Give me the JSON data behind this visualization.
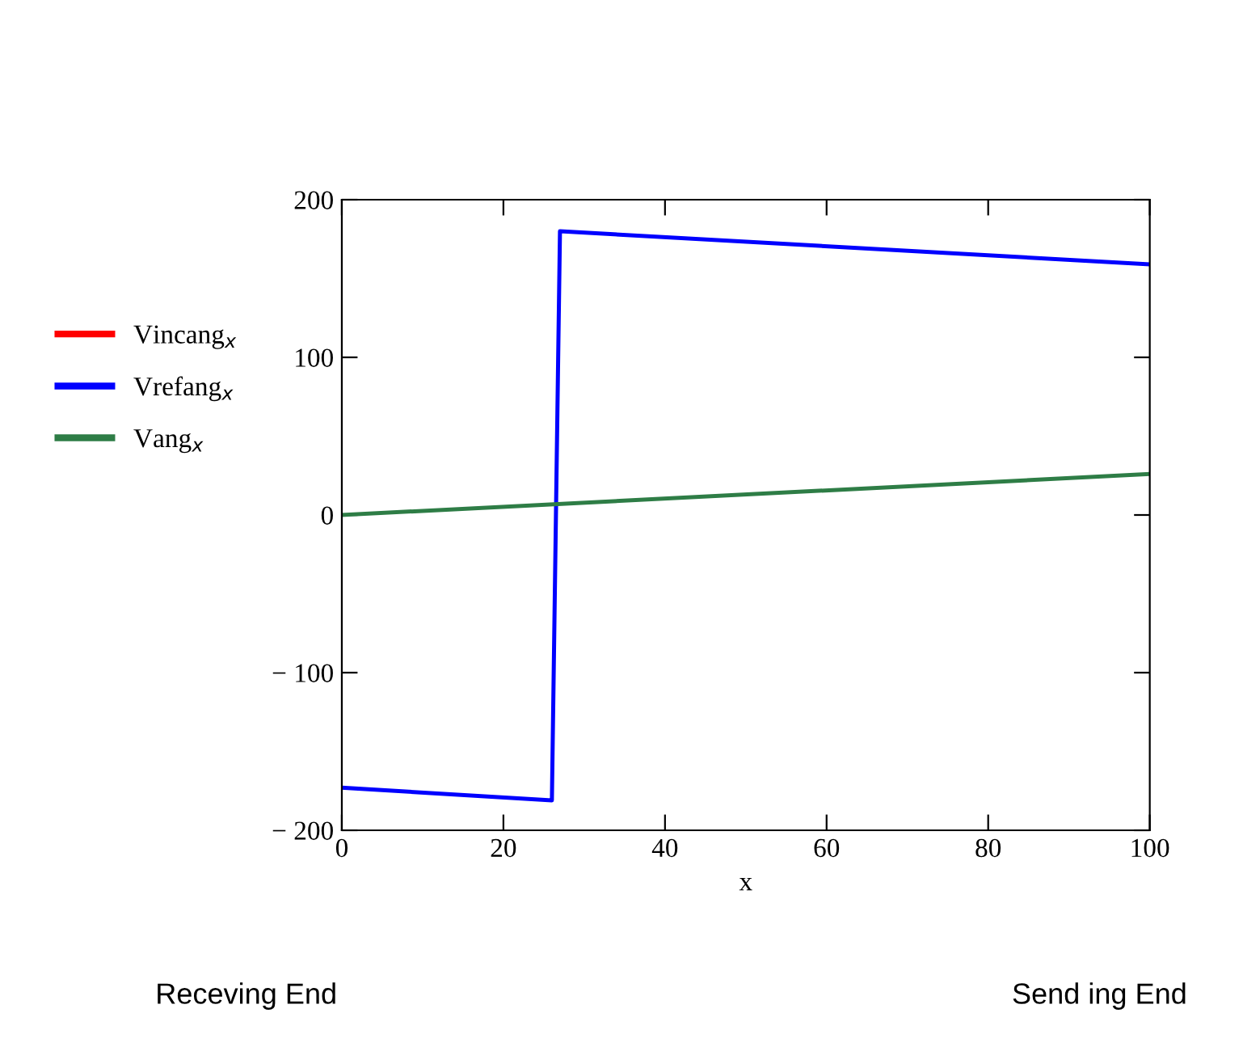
{
  "chart_data": {
    "type": "line",
    "xlabel": "x",
    "series": [
      {
        "name": "Vincang$_{x}$",
        "color": "#ff0000"
      },
      {
        "name": "Vrefang$_{x}$",
        "color": "#0000ff",
        "x": [
          0,
          26,
          27,
          100
        ],
        "values": [
          -173,
          -181,
          180,
          159
        ]
      },
      {
        "name": "Vang$_{x}$",
        "color": "#2e7d46",
        "x": [
          0,
          100
        ],
        "values": [
          0,
          26
        ]
      }
    ],
    "xlim": [
      0,
      100
    ],
    "xticks": [
      0,
      20,
      40,
      60,
      80,
      100
    ],
    "ylim": [
      -200,
      200
    ],
    "yticks": [
      {
        "value": -200,
        "label": "− 200"
      },
      {
        "value": -100,
        "label": "− 100"
      },
      0,
      100,
      200
    ],
    "grid": false,
    "legend": "left",
    "line_style": "solid",
    "marker": "none",
    "annotations": [
      "Receving End",
      "Send ing End"
    ]
  }
}
